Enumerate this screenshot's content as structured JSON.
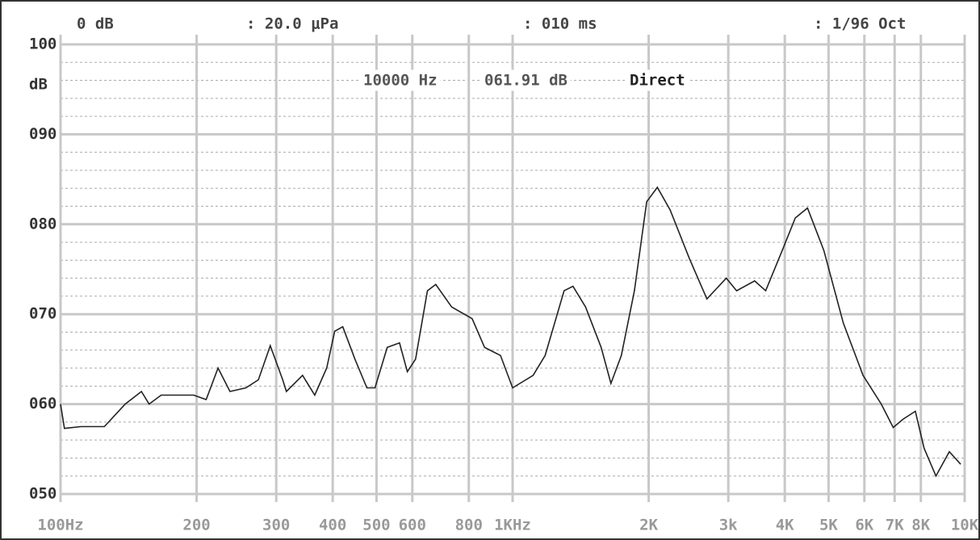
{
  "chart_data": {
    "type": "line",
    "header": [
      "0 dB",
      ": 20.0 μPa",
      ": 010 ms",
      ": 1/96 Oct"
    ],
    "annotations": [
      "10000 Hz",
      "061.91 dB",
      "Direct"
    ],
    "ylabel": "dB",
    "xscale": "log",
    "grid": true,
    "xlim": [
      100,
      10000
    ],
    "ylim": [
      50,
      100
    ],
    "xticks": [
      {
        "value": 100,
        "label": "100Hz"
      },
      200,
      300,
      400,
      500,
      600,
      800,
      {
        "value": 1000,
        "label": "1KHz"
      },
      {
        "value": 2000,
        "label": "2K"
      },
      {
        "value": 3000,
        "label": "3k"
      },
      {
        "value": 4000,
        "label": "4K"
      },
      {
        "value": 5000,
        "label": "5K"
      },
      {
        "value": 6000,
        "label": "6K"
      },
      {
        "value": 7000,
        "label": "7K"
      },
      {
        "value": 8000,
        "label": "8K"
      },
      {
        "value": 10000,
        "label": "10K"
      }
    ],
    "yticks": [
      {
        "value": 50,
        "label": "050"
      },
      {
        "value": 60,
        "label": "060"
      },
      {
        "value": 70,
        "label": "070"
      },
      {
        "value": 80,
        "label": "080"
      },
      {
        "value": 90,
        "label": "090"
      },
      100
    ],
    "minor_yticks": [
      52,
      54,
      56,
      58,
      62,
      64,
      66,
      68,
      72,
      74,
      76,
      78,
      82,
      84,
      86,
      88,
      92,
      94,
      96,
      98
    ],
    "series": [
      {
        "color": "#222222",
        "x": [
          100,
          102,
          111,
          125,
          139,
          151,
          157,
          167,
          197,
          210,
          223,
          237,
          257,
          274,
          291,
          310,
          316,
          343,
          365,
          388,
          404,
          421,
          448,
          476,
          496,
          528,
          562,
          585,
          610,
          648,
          676,
          733,
          814,
          867,
          940,
          1000,
          1110,
          1180,
          1300,
          1360,
          1450,
          1570,
          1650,
          1740,
          1860,
          1980,
          2090,
          2230,
          2460,
          2690,
          2970,
          3130,
          3430,
          3630,
          3950,
          4220,
          4490,
          4880,
          5390,
          5960,
          6540,
          6950,
          7300,
          7780,
          8130,
          8640,
          9250,
          9800
        ],
        "values": [
          60,
          57.3,
          57.5,
          57.5,
          60,
          61.4,
          60,
          61,
          61,
          60.5,
          64,
          61.4,
          61.8,
          62.7,
          66.5,
          62.7,
          61.4,
          63.2,
          61,
          64,
          68.1,
          68.6,
          65,
          61.8,
          61.8,
          66.3,
          66.8,
          63.6,
          65,
          72.6,
          73.3,
          70.8,
          69.5,
          66.3,
          65.4,
          61.8,
          63.2,
          65.4,
          72.6,
          73.1,
          70.8,
          66.3,
          62.3,
          65.4,
          72.6,
          82.5,
          84.1,
          81.6,
          76.2,
          71.7,
          74,
          72.6,
          73.7,
          72.6,
          77.1,
          80.7,
          81.8,
          77.1,
          69,
          63.2,
          60,
          57.4,
          58.3,
          59.2,
          55.1,
          52,
          54.7,
          53.3
        ]
      }
    ]
  }
}
